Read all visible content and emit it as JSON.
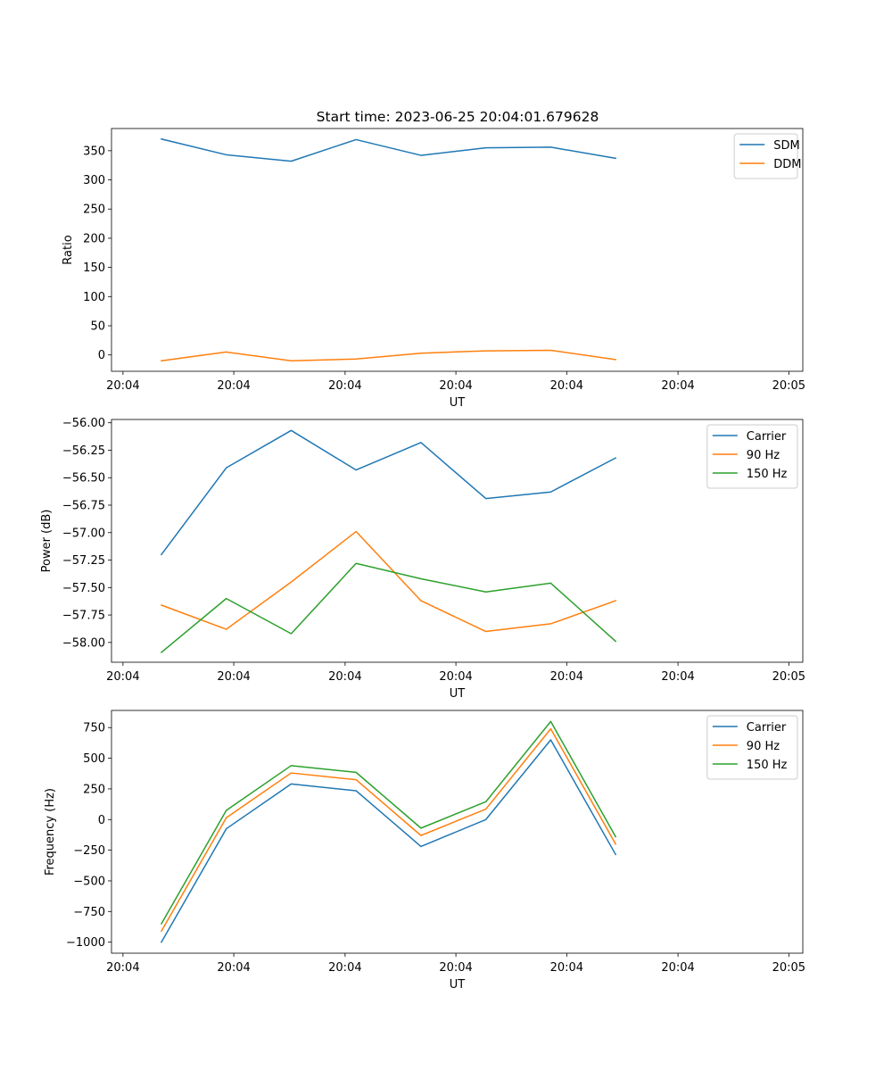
{
  "title": "Start time: 2023-06-25 20:04:01.679628",
  "colors": {
    "blue": "#1f77b4",
    "orange": "#ff7f0e",
    "green": "#2ca02c"
  },
  "chart_data": [
    {
      "type": "line",
      "xlabel": "UT",
      "ylabel": "Ratio",
      "xticks": [
        "20:04",
        "20:04",
        "20:04",
        "20:04",
        "20:04",
        "20:04",
        "20:05"
      ],
      "xlim": [
        0,
        12
      ],
      "x": [
        1,
        2.3,
        3.6,
        4.9,
        6.2,
        7.5,
        8.8,
        10.1
      ],
      "ylim": [
        -28,
        388
      ],
      "yticks": [
        0,
        50,
        100,
        150,
        200,
        250,
        300,
        350
      ],
      "yticklabels": [
        "0",
        "50",
        "100",
        "150",
        "200",
        "250",
        "300",
        "350"
      ],
      "legend_position": "top-right",
      "series": [
        {
          "name": "SDM",
          "color": "#1f77b4",
          "values": [
            370,
            343,
            332,
            369,
            342,
            355,
            356,
            337
          ]
        },
        {
          "name": "DDM",
          "color": "#ff7f0e",
          "values": [
            -10,
            5,
            -10,
            -7,
            3,
            7,
            8,
            -8
          ]
        }
      ]
    },
    {
      "type": "line",
      "xlabel": "UT",
      "ylabel": "Power (dB)",
      "xticks": [
        "20:04",
        "20:04",
        "20:04",
        "20:04",
        "20:04",
        "20:04",
        "20:05"
      ],
      "xlim": [
        0,
        12
      ],
      "x": [
        1,
        2.3,
        3.6,
        4.9,
        6.2,
        7.5,
        8.8,
        10.1
      ],
      "ylim": [
        -58.18,
        -55.97
      ],
      "yticks": [
        -58.0,
        -57.75,
        -57.5,
        -57.25,
        -57.0,
        -56.75,
        -56.5,
        -56.25,
        -56.0
      ],
      "yticklabels": [
        "−58.00",
        "−57.75",
        "−57.50",
        "−57.25",
        "−57.00",
        "−56.75",
        "−56.50",
        "−56.25",
        "−56.00"
      ],
      "legend_position": "top-right",
      "series": [
        {
          "name": "Carrier",
          "color": "#1f77b4",
          "values": [
            -57.2,
            -56.41,
            -56.07,
            -56.43,
            -56.18,
            -56.69,
            -56.63,
            -56.32
          ]
        },
        {
          "name": "90 Hz",
          "color": "#ff7f0e",
          "values": [
            -57.66,
            -57.88,
            -57.45,
            -56.99,
            -57.62,
            -57.9,
            -57.83,
            -57.62
          ]
        },
        {
          "name": "150 Hz",
          "color": "#2ca02c",
          "values": [
            -58.09,
            -57.6,
            -57.92,
            -57.28,
            -57.42,
            -57.54,
            -57.46,
            -57.99
          ]
        }
      ]
    },
    {
      "type": "line",
      "xlabel": "UT",
      "ylabel": "Frequency (Hz)",
      "xticks": [
        "20:04",
        "20:04",
        "20:04",
        "20:04",
        "20:04",
        "20:04",
        "20:05"
      ],
      "xlim": [
        0,
        12
      ],
      "x": [
        1,
        2.3,
        3.6,
        4.9,
        6.2,
        7.5,
        8.8,
        10.1
      ],
      "ylim": [
        -1090,
        890
      ],
      "yticks": [
        -1000,
        -750,
        -500,
        -250,
        0,
        250,
        500,
        750
      ],
      "yticklabels": [
        "−1000",
        "−750",
        "−500",
        "−250",
        "0",
        "250",
        "500",
        "750"
      ],
      "legend_position": "top-right",
      "series": [
        {
          "name": "Carrier",
          "color": "#1f77b4",
          "values": [
            -1000,
            -75,
            290,
            235,
            -220,
            0,
            650,
            -285
          ]
        },
        {
          "name": "90 Hz",
          "color": "#ff7f0e",
          "values": [
            -910,
            15,
            380,
            325,
            -130,
            85,
            740,
            -200
          ]
        },
        {
          "name": "150 Hz",
          "color": "#2ca02c",
          "values": [
            -850,
            75,
            440,
            385,
            -70,
            145,
            800,
            -140
          ]
        }
      ]
    }
  ]
}
